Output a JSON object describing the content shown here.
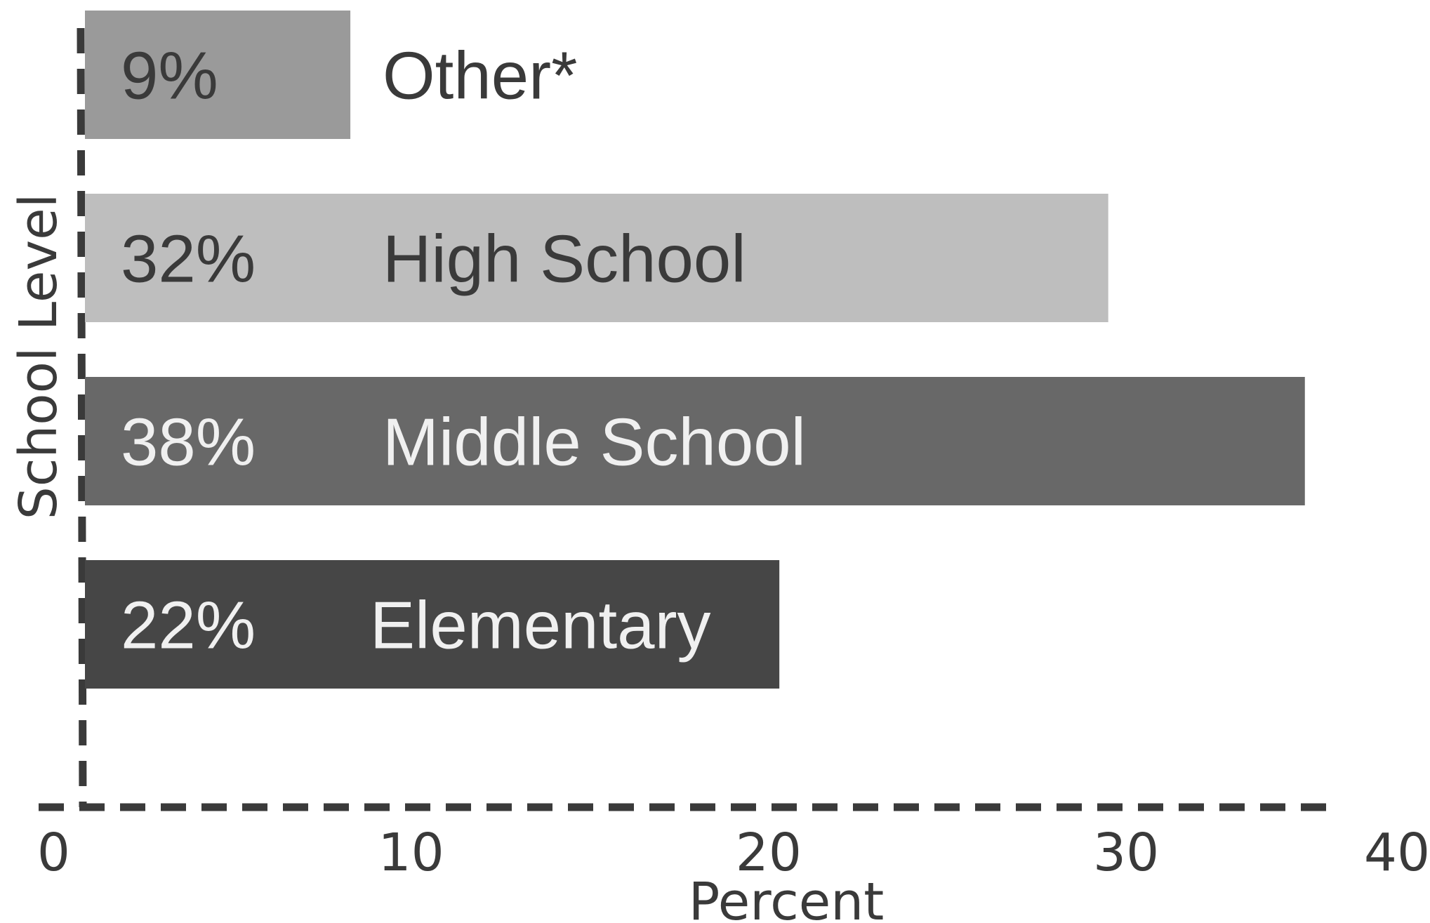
{
  "chart_data": {
    "type": "bar",
    "orientation": "horizontal",
    "categories": [
      "Other*",
      "High School",
      "Middle School",
      "Elementary"
    ],
    "values": [
      8.3,
      29.5,
      35,
      20.3
    ],
    "value_labels": [
      "9%",
      "32%",
      "38%",
      "22%"
    ],
    "colors": [
      "#9a9a9a",
      "#bebebe",
      "#686868",
      "#464646"
    ],
    "label_colors": [
      "#3a3a3a",
      "#3a3a3a",
      "#f0f0f0",
      "#f0f0f0"
    ],
    "xlabel": "Percent",
    "ylabel": "School Level",
    "xlim": [
      -1.5,
      38.5
    ],
    "xticks": [
      0,
      10,
      20,
      30,
      40
    ],
    "grid": false,
    "axis_line_color": "#3a3a3a"
  }
}
